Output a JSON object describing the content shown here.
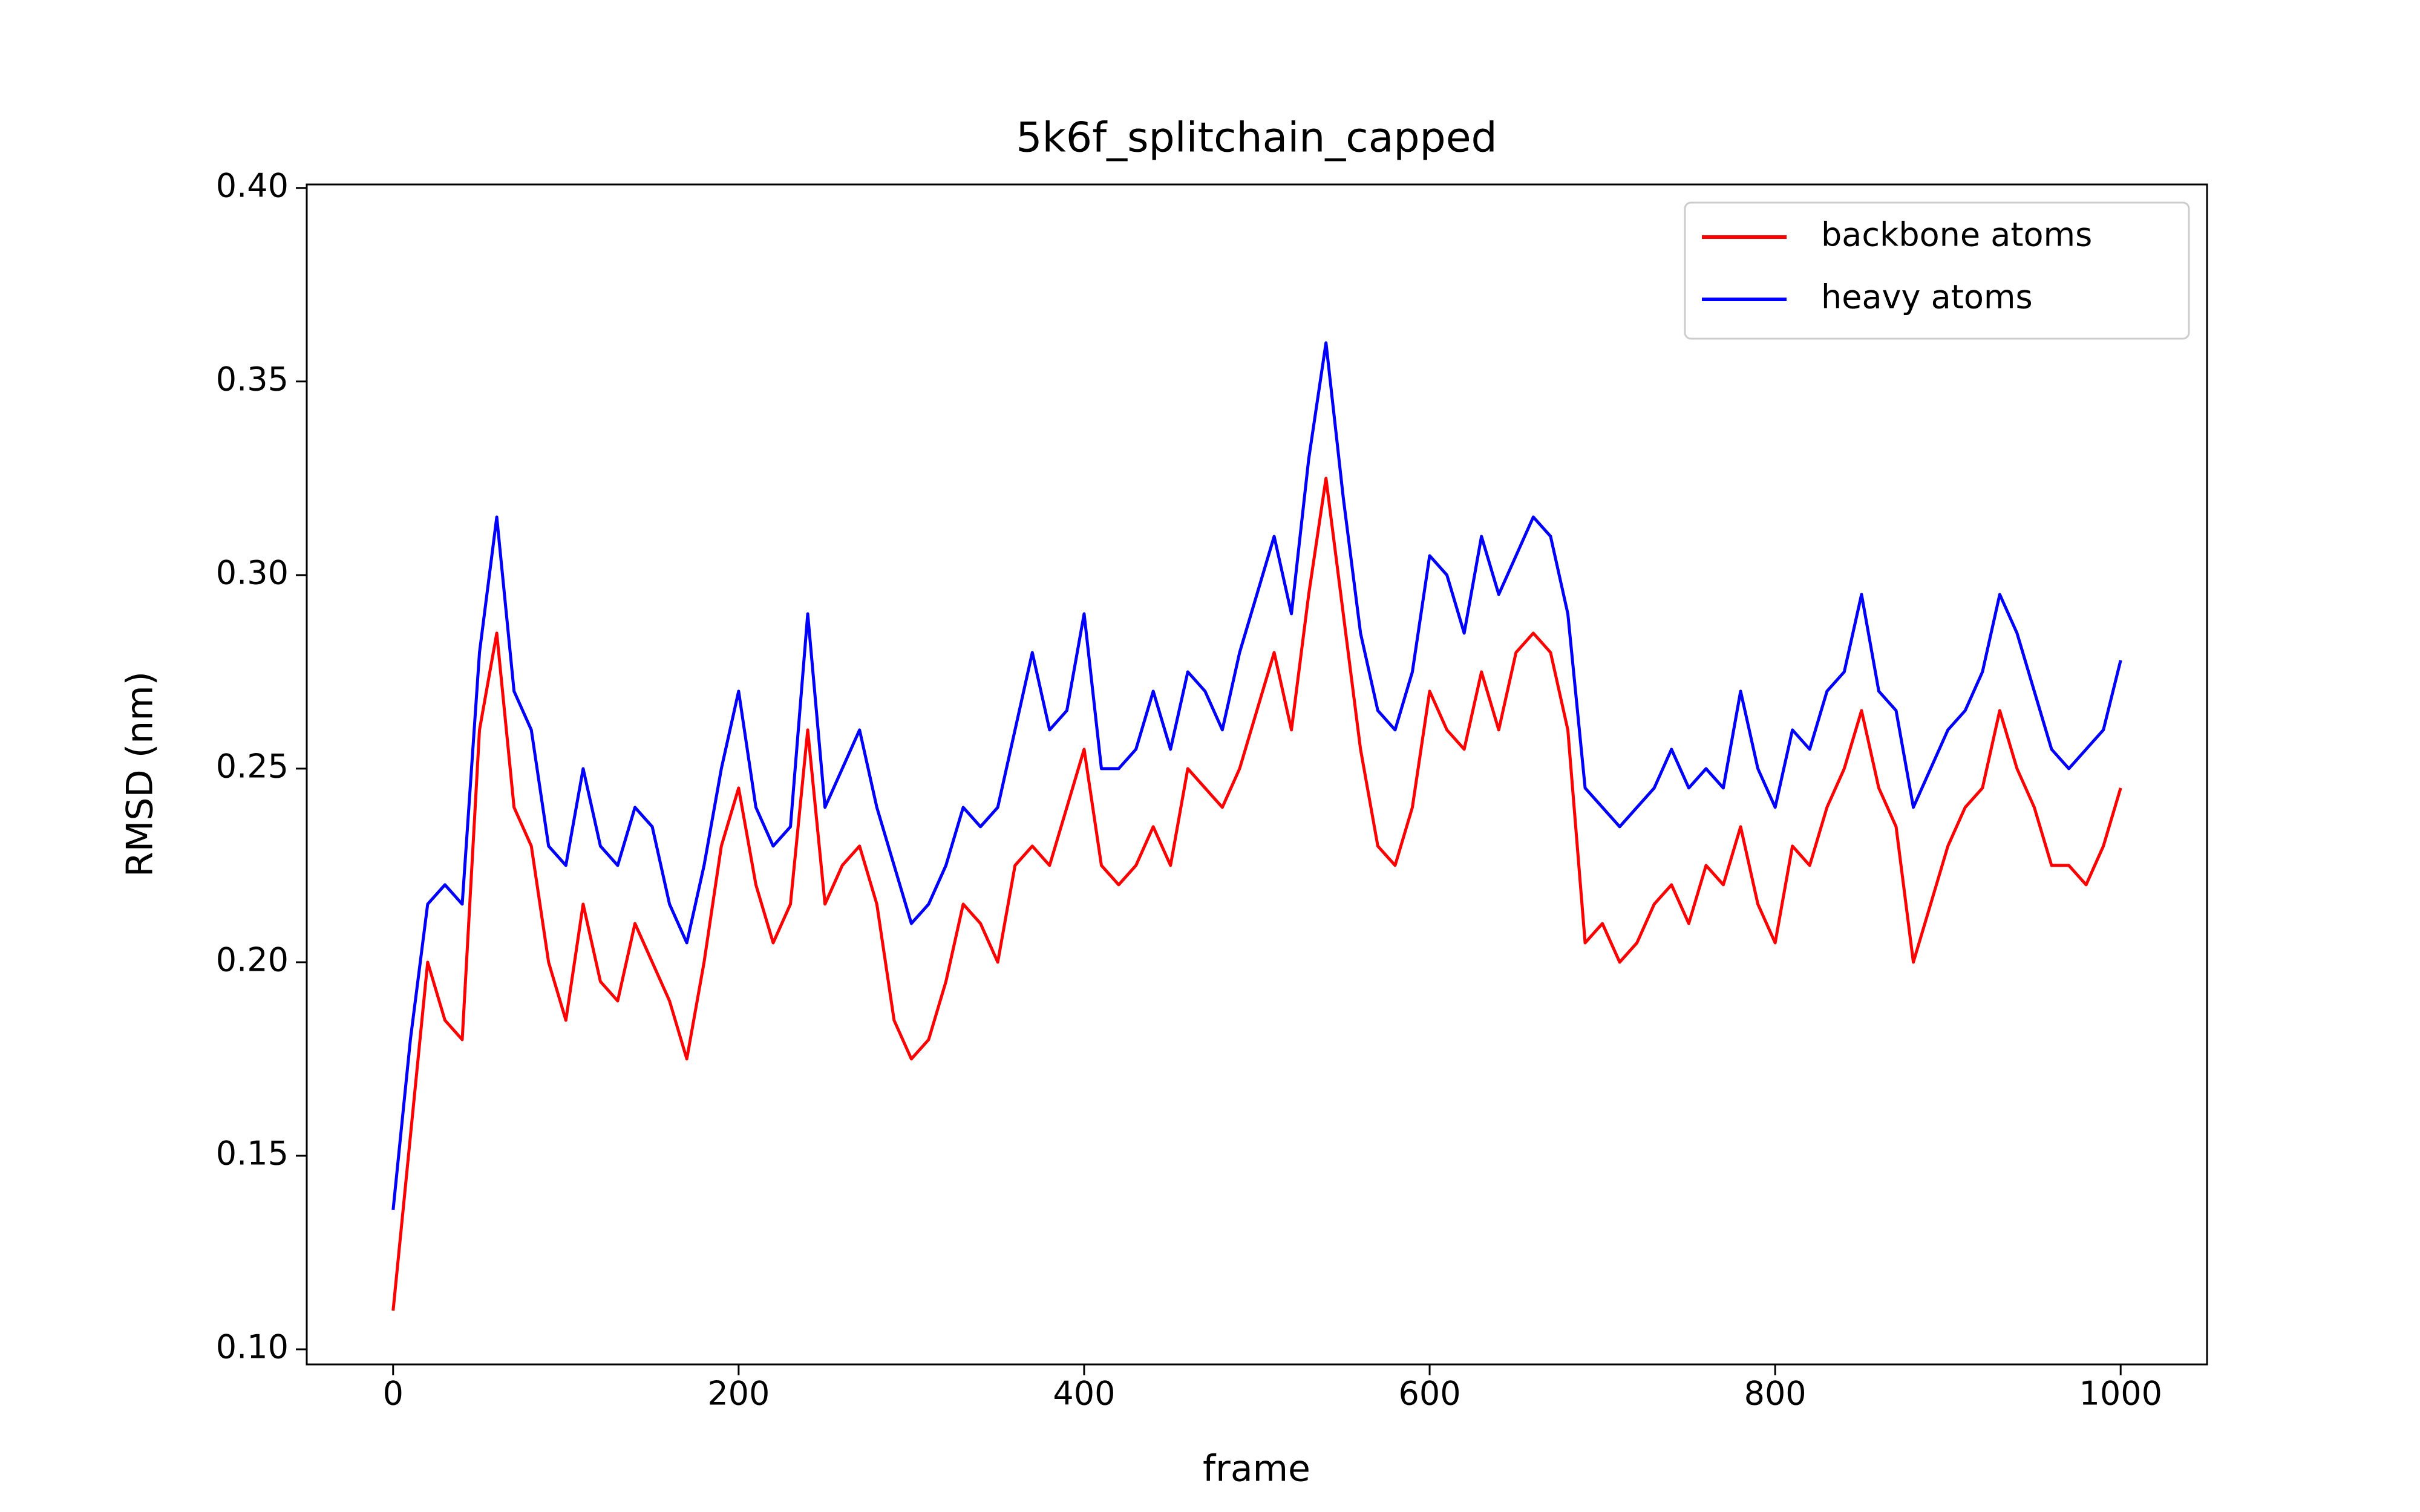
{
  "chart_data": {
    "type": "line",
    "title": "5k6f_splitchain_capped",
    "xlabel": "frame",
    "ylabel": "RMSD (nm)",
    "x": [
      0,
      10,
      20,
      30,
      40,
      50,
      60,
      70,
      80,
      90,
      100,
      110,
      120,
      130,
      140,
      150,
      160,
      170,
      180,
      190,
      200,
      210,
      220,
      230,
      240,
      250,
      260,
      270,
      280,
      290,
      300,
      310,
      320,
      330,
      340,
      350,
      360,
      370,
      380,
      390,
      400,
      410,
      420,
      430,
      440,
      450,
      460,
      470,
      480,
      490,
      500,
      510,
      520,
      530,
      540,
      550,
      560,
      570,
      580,
      590,
      600,
      610,
      620,
      630,
      640,
      650,
      660,
      670,
      680,
      690,
      700,
      710,
      720,
      730,
      740,
      750,
      760,
      770,
      780,
      790,
      800,
      810,
      820,
      830,
      840,
      850,
      860,
      870,
      880,
      890,
      900,
      910,
      920,
      930,
      940,
      950,
      960,
      970,
      980,
      990,
      1000
    ],
    "series": [
      {
        "name": "backbone atoms",
        "color": "#ff0000",
        "values": [
          0.11,
          0.155,
          0.2,
          0.185,
          0.18,
          0.26,
          0.285,
          0.24,
          0.23,
          0.2,
          0.185,
          0.215,
          0.195,
          0.19,
          0.21,
          0.2,
          0.19,
          0.175,
          0.2,
          0.23,
          0.245,
          0.22,
          0.205,
          0.215,
          0.26,
          0.215,
          0.225,
          0.23,
          0.215,
          0.185,
          0.175,
          0.18,
          0.195,
          0.215,
          0.21,
          0.2,
          0.225,
          0.23,
          0.225,
          0.24,
          0.255,
          0.225,
          0.22,
          0.225,
          0.235,
          0.225,
          0.25,
          0.245,
          0.24,
          0.25,
          0.265,
          0.28,
          0.26,
          0.295,
          0.325,
          0.29,
          0.255,
          0.23,
          0.225,
          0.24,
          0.27,
          0.26,
          0.255,
          0.275,
          0.26,
          0.28,
          0.285,
          0.28,
          0.26,
          0.205,
          0.21,
          0.2,
          0.205,
          0.215,
          0.22,
          0.21,
          0.225,
          0.22,
          0.235,
          0.215,
          0.205,
          0.23,
          0.225,
          0.24,
          0.25,
          0.265,
          0.245,
          0.235,
          0.2,
          0.215,
          0.23,
          0.24,
          0.245,
          0.265,
          0.25,
          0.24,
          0.225,
          0.225,
          0.22,
          0.23,
          0.245
        ]
      },
      {
        "name": "heavy atoms",
        "color": "#0000ff",
        "values": [
          0.136,
          0.18,
          0.215,
          0.22,
          0.215,
          0.28,
          0.315,
          0.27,
          0.26,
          0.23,
          0.225,
          0.25,
          0.23,
          0.225,
          0.24,
          0.235,
          0.215,
          0.205,
          0.225,
          0.25,
          0.27,
          0.24,
          0.23,
          0.235,
          0.29,
          0.24,
          0.25,
          0.26,
          0.24,
          0.225,
          0.21,
          0.215,
          0.225,
          0.24,
          0.235,
          0.24,
          0.26,
          0.28,
          0.26,
          0.265,
          0.29,
          0.25,
          0.25,
          0.255,
          0.27,
          0.255,
          0.275,
          0.27,
          0.26,
          0.28,
          0.295,
          0.31,
          0.29,
          0.33,
          0.36,
          0.32,
          0.285,
          0.265,
          0.26,
          0.275,
          0.305,
          0.3,
          0.285,
          0.31,
          0.295,
          0.305,
          0.315,
          0.31,
          0.29,
          0.245,
          0.24,
          0.235,
          0.24,
          0.245,
          0.255,
          0.245,
          0.25,
          0.245,
          0.27,
          0.25,
          0.24,
          0.26,
          0.255,
          0.27,
          0.275,
          0.295,
          0.27,
          0.265,
          0.24,
          0.25,
          0.26,
          0.265,
          0.275,
          0.295,
          0.285,
          0.27,
          0.255,
          0.25,
          0.255,
          0.26,
          0.278
        ]
      }
    ],
    "xlim": [
      -50,
      1050
    ],
    "ylim": [
      0.0961,
      0.4009
    ],
    "xticks": [
      0,
      200,
      400,
      600,
      800,
      1000
    ],
    "yticks": [
      {
        "value": 0.1,
        "label": "0.10"
      },
      0.15,
      {
        "value": 0.2,
        "label": "0.20"
      },
      0.25,
      {
        "value": 0.3,
        "label": "0.30"
      },
      0.35,
      {
        "value": 0.4,
        "label": "0.40"
      }
    ],
    "legend": "upper right"
  }
}
